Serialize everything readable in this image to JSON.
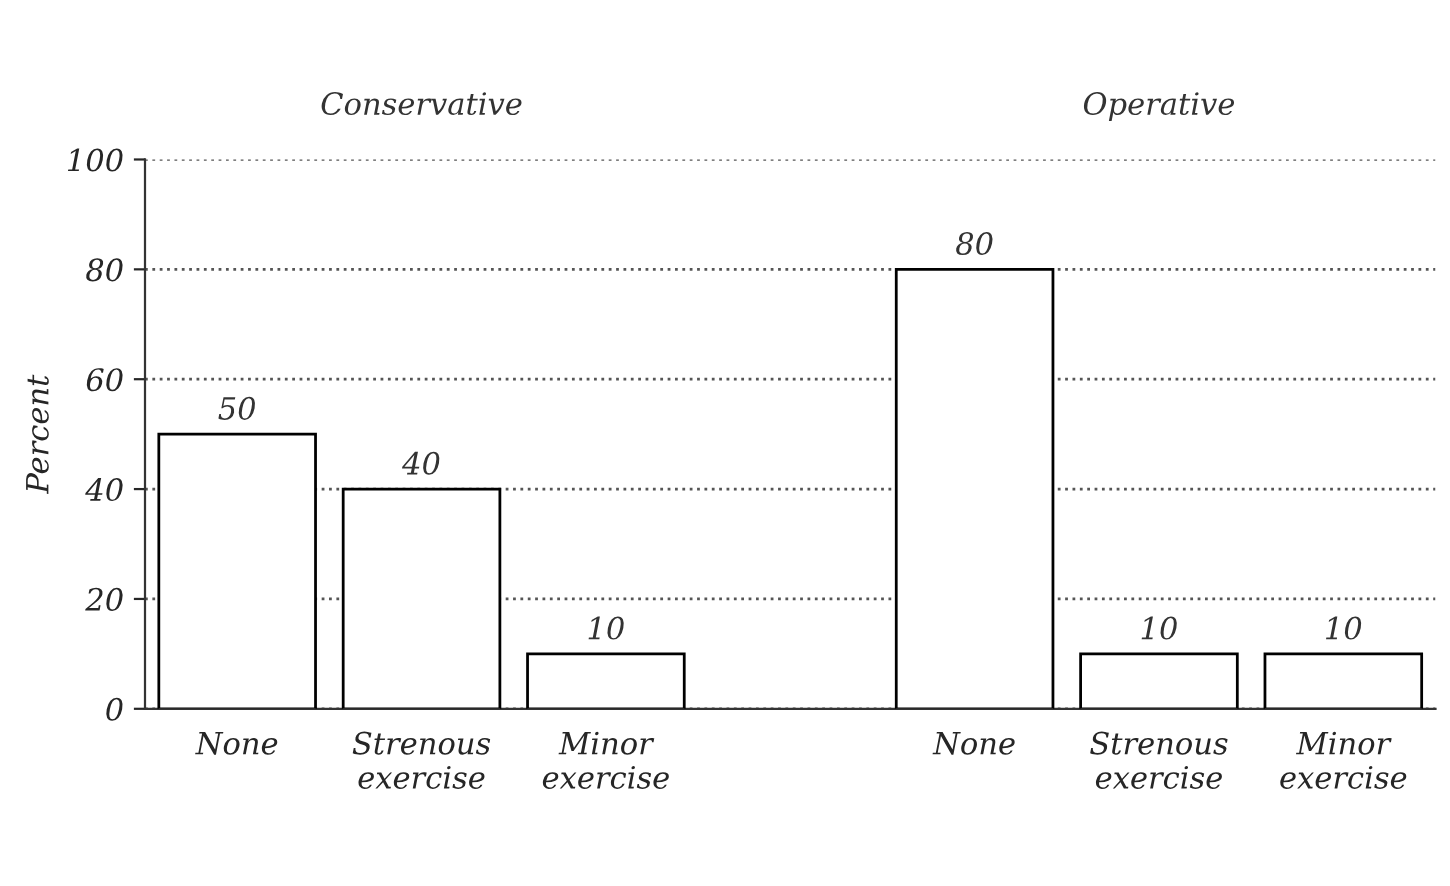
{
  "chart_data": {
    "type": "bar",
    "ylabel": "Percent",
    "categories": [
      "None",
      "Strenous exercise",
      "Minor exercise",
      null,
      "None",
      "Strenous exercise",
      "Minor exercise"
    ],
    "series": [
      {
        "color": "#ffffff",
        "values": [
          50,
          40,
          10,
          null,
          80,
          10,
          10
        ]
      }
    ],
    "annotations": [
      "Conservative",
      "Operative"
    ],
    "ylim": [
      0,
      100
    ],
    "yticks": [
      0,
      20,
      40,
      60,
      80,
      100
    ],
    "grid": "y",
    "data_labels": true
  }
}
